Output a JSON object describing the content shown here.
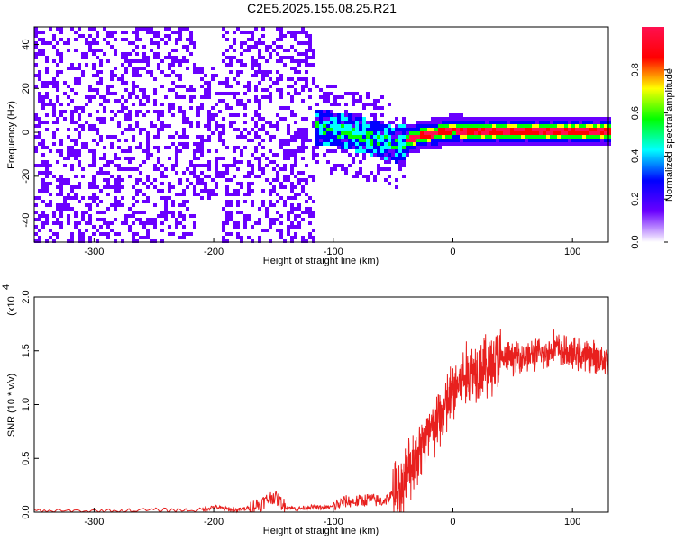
{
  "title": "C2E5.2025.155.08.25.R21",
  "chart_data": [
    {
      "type": "heatmap",
      "xlabel": "Height of straight line (km)",
      "ylabel": "Frequency (Hz)",
      "xlim": [
        -350,
        130
      ],
      "ylim": [
        -50,
        48
      ],
      "xticks": [
        -300,
        -200,
        -100,
        0,
        100
      ],
      "yticks": [
        -40,
        -20,
        0,
        20,
        40
      ],
      "tick_labels_x": [
        "-300",
        "-200",
        "-100",
        "0",
        "100"
      ],
      "tick_labels_y": [
        "-40",
        "-20",
        "0",
        "20",
        "40"
      ],
      "colorbar": {
        "label": "Normalized spectral amplitude",
        "range": [
          0.0,
          1.0
        ],
        "ticks": [
          "0.0",
          "0.2",
          "0.4",
          "0.6",
          "0.8"
        ],
        "colors": [
          "#ffffff",
          "#6a00ff",
          "#0000ff",
          "#00ffff",
          "#00ff00",
          "#ffff00",
          "#ff0000",
          "#ff1050"
        ]
      },
      "signal_ridge": {
        "x": [
          -120,
          -100,
          -80,
          -60,
          -50,
          -40,
          -30,
          -20,
          -10,
          0,
          20,
          40,
          60,
          80,
          100,
          130
        ],
        "y": [
          3,
          2,
          0,
          -3,
          -5,
          -3,
          -1,
          0,
          1,
          2,
          1,
          1,
          1,
          1,
          1,
          1
        ]
      },
      "grid": false
    },
    {
      "type": "line",
      "xlabel": "Height of straight line (km)",
      "ylabel": "SNR (10 * v/v)",
      "y_multiplier": "(x10",
      "y_multiplier_exp": "4",
      "xlim": [
        -350,
        130
      ],
      "ylim": [
        0.0,
        2.0
      ],
      "xticks": [
        -300,
        -200,
        -100,
        0,
        100
      ],
      "yticks": [
        0.0,
        0.5,
        1.0,
        1.5,
        2.0
      ],
      "tick_labels_x": [
        "-300",
        "-200",
        "-100",
        "0",
        "100"
      ],
      "tick_labels_y": [
        "0.0",
        "0.5",
        "1.0",
        "1.5",
        "2.0"
      ],
      "series": [
        {
          "color": "#e8201e",
          "x": [
            -350,
            -300,
            -250,
            -210,
            -200,
            -190,
            -180,
            -170,
            -160,
            -150,
            -140,
            -130,
            -120,
            -110,
            -100,
            -90,
            -80,
            -70,
            -60,
            -50,
            -45,
            -40,
            -35,
            -30,
            -25,
            -20,
            -15,
            -10,
            -5,
            0,
            5,
            10,
            15,
            20,
            25,
            30,
            35,
            40,
            45,
            50,
            55,
            60,
            65,
            70,
            75,
            80,
            85,
            90,
            95,
            100,
            105,
            110,
            115,
            120,
            125,
            130
          ],
          "values": [
            0.01,
            0.01,
            0.02,
            0.02,
            0.05,
            0.03,
            0.02,
            0.04,
            0.08,
            0.15,
            0.05,
            0.03,
            0.05,
            0.04,
            0.05,
            0.1,
            0.1,
            0.12,
            0.1,
            0.15,
            0.2,
            0.3,
            0.45,
            0.55,
            0.65,
            0.7,
            0.8,
            0.9,
            1.0,
            1.1,
            1.2,
            1.25,
            1.3,
            1.35,
            1.35,
            1.38,
            1.4,
            1.42,
            1.43,
            1.44,
            1.45,
            1.45,
            1.46,
            1.47,
            1.47,
            1.48,
            1.55,
            1.5,
            1.48,
            1.47,
            1.46,
            1.45,
            1.45,
            1.44,
            1.43,
            1.42
          ]
        }
      ],
      "grid": false
    }
  ]
}
